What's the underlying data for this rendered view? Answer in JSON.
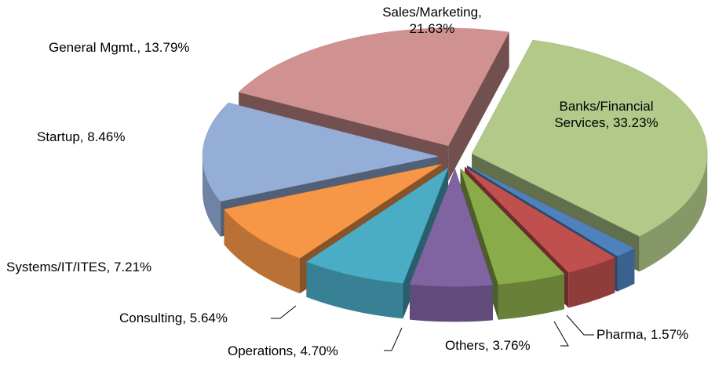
{
  "chart_data": {
    "type": "pie3d",
    "labels": [
      "Banks/Financial Services, 33.23%",
      "Pharma, 1.57%",
      "Others, 3.76%",
      "Operations, 4.70%",
      "Consulting, 5.64%",
      "Systems/IT/ITES, 7.21%",
      "Startup, 8.46%",
      "General Mgmt., 13.79%",
      "Sales/Marketing, 21.63%"
    ],
    "values": [
      33.23,
      1.57,
      3.76,
      4.7,
      5.64,
      7.21,
      8.46,
      13.79,
      21.63
    ],
    "colors": [
      "#b3c98a",
      "#4f81bd",
      "#c0504d",
      "#8aab4a",
      "#8064a2",
      "#4bacc6",
      "#f79646",
      "#95aed8",
      "#d09290"
    ]
  }
}
